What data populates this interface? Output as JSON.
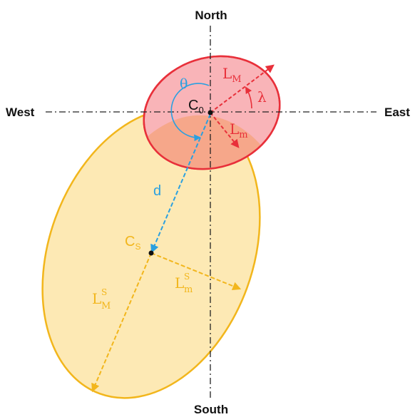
{
  "compass": {
    "north": "North",
    "south": "South",
    "west": "West",
    "east": "East"
  },
  "labels": {
    "theta": "θ",
    "lambda": "λ",
    "d": "d",
    "c0_base": "C",
    "c0_sub": "0",
    "lM_base": "L",
    "lM_sub": "M",
    "lm_base": "L",
    "lm_sub": "m",
    "cs_base": "C",
    "cs_sub": "S",
    "lsm_base": "L",
    "lsm_sup": "S",
    "lsm_sub": "m",
    "lsM_base": "L",
    "lsM_sup": "S",
    "lsM_sub": "M"
  },
  "colors": {
    "red": "#e8303a",
    "red_fill": "#f9b4b8",
    "yellow": "#f2b61c",
    "yellow_fill": "#fde9b4",
    "overlap_fill": "#f6a78a",
    "blue": "#2aa0e0",
    "axis": "#222222"
  }
}
